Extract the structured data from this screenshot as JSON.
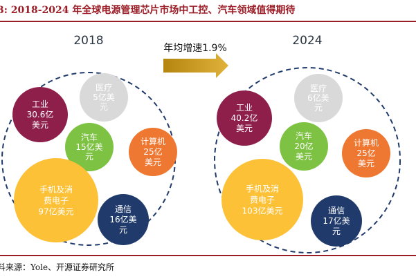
{
  "header": {
    "title": "3:  2018-2024 年全球电源管理芯片市场中工控、汽车领域值得期待"
  },
  "diagram": {
    "left_year": "2018",
    "right_year": "2024",
    "growth_label": "年均增速1.9%",
    "left_bubbles": [
      {
        "key": "industrial",
        "lines": [
          "工业",
          "30.6亿",
          "美元"
        ],
        "color": "#8e1f4b",
        "text_color": "#ffffff"
      },
      {
        "key": "medical",
        "lines": [
          "医疗",
          "5亿美",
          "元"
        ],
        "color": "#d9d9d9",
        "text_color": "#ffffff"
      },
      {
        "key": "automotive",
        "lines": [
          "汽车",
          "15亿美",
          "元"
        ],
        "color": "#7dc242",
        "text_color": "#ffffff"
      },
      {
        "key": "computing",
        "lines": [
          "计算机",
          "25亿",
          "美元"
        ],
        "color": "#ee7832",
        "text_color": "#ffffff"
      },
      {
        "key": "consumer",
        "lines": [
          "手机及消",
          "费电子",
          "97亿美元"
        ],
        "color": "#fcc136",
        "text_color": "#ffffff"
      },
      {
        "key": "telecom",
        "lines": [
          "通信",
          "16亿美",
          "元"
        ],
        "color": "#1f3a6b",
        "text_color": "#ffffff"
      }
    ],
    "right_bubbles": [
      {
        "key": "industrial",
        "lines": [
          "工业",
          "40.2亿",
          "美元"
        ],
        "color": "#8e1f4b",
        "text_color": "#ffffff"
      },
      {
        "key": "medical",
        "lines": [
          "医疗",
          "6亿美",
          "元"
        ],
        "color": "#d9d9d9",
        "text_color": "#ffffff"
      },
      {
        "key": "automotive",
        "lines": [
          "汽车",
          "20亿",
          "美元"
        ],
        "color": "#7dc242",
        "text_color": "#ffffff"
      },
      {
        "key": "computing",
        "lines": [
          "计算机",
          "25亿",
          "美元"
        ],
        "color": "#ee7832",
        "text_color": "#ffffff"
      },
      {
        "key": "consumer",
        "lines": [
          "手机及消",
          "费电子",
          "103亿美元"
        ],
        "color": "#fcc136",
        "text_color": "#ffffff"
      },
      {
        "key": "telecom",
        "lines": [
          "通信",
          "17亿美",
          "元"
        ],
        "color": "#1f3a6b",
        "text_color": "#ffffff"
      }
    ],
    "colors": {
      "dash": "#1f3a6b",
      "arrow": "#c99a1a",
      "title": "#9b1d26"
    }
  },
  "footer": {
    "source": "料来源：Yole、开源证券研究所"
  }
}
